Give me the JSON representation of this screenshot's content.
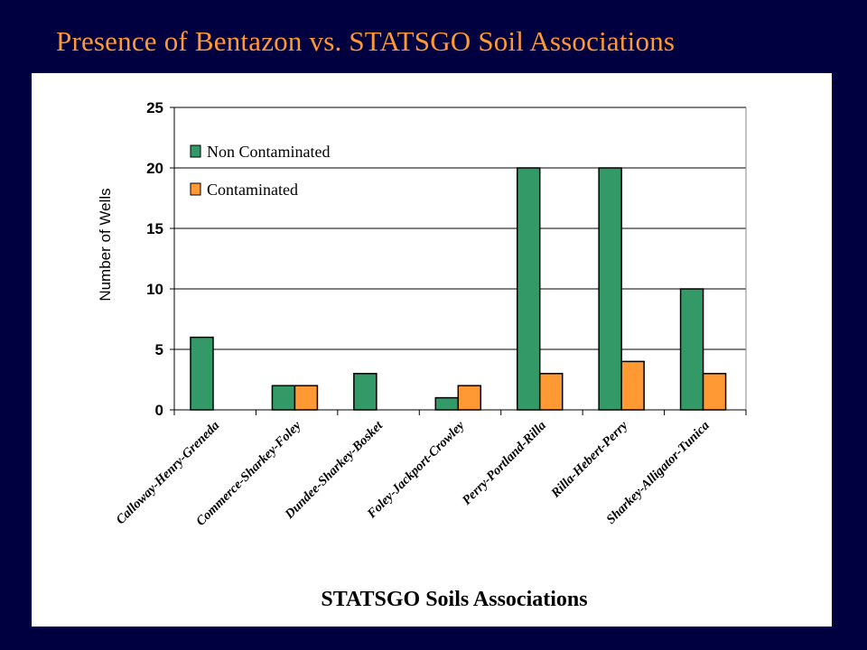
{
  "slide": {
    "title": "Presence of Bentazon vs. STATSGO  Soil Associations"
  },
  "colors": {
    "background": "#000040",
    "title": "#ff9933",
    "non_contaminated": "#339966",
    "contaminated": "#ff9933"
  },
  "chart_data": {
    "type": "bar",
    "xlabel": "STATSGO Soils Associations",
    "ylabel": "Number of Wells",
    "ylim": [
      0,
      25
    ],
    "yticks": [
      0,
      5,
      10,
      15,
      20,
      25
    ],
    "grid": true,
    "legend_position": "top-left",
    "categories": [
      "Calloway-Henry-Greneda",
      "Commerce-Sharkey-Foley",
      "Dundee-Sharkey-Bosket",
      "Foley-Jackport-Crowley",
      "Perry-Portland-Rilla",
      "Rilla-Hebert-Perry",
      "Sharkey-Alligator-Tunica"
    ],
    "series": [
      {
        "name": "Non Contaminated",
        "values": [
          6,
          2,
          3,
          1,
          20,
          20,
          10
        ]
      },
      {
        "name": "Contaminated",
        "values": [
          0,
          2,
          0,
          2,
          3,
          4,
          3
        ]
      }
    ]
  }
}
